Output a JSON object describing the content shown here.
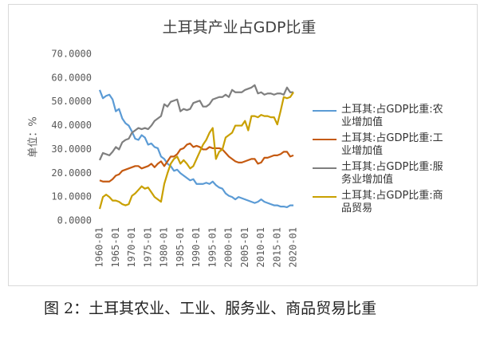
{
  "chart_data": {
    "type": "line",
    "title": "土耳其产业占GDP比重",
    "y_label": "单位：%",
    "categories": [
      "1960-01",
      null,
      null,
      null,
      null,
      "1965-01",
      null,
      null,
      null,
      null,
      "1970-01",
      null,
      null,
      null,
      null,
      "1975-01",
      null,
      null,
      null,
      null,
      "1980-01",
      null,
      null,
      null,
      null,
      "1985-01",
      null,
      null,
      null,
      null,
      "1990-01",
      null,
      null,
      null,
      null,
      "1995-01",
      null,
      null,
      null,
      null,
      "2000-01",
      null,
      null,
      null,
      null,
      "2005-01",
      null,
      null,
      null,
      null,
      "2010-01",
      null,
      null,
      null,
      null,
      "2015-01",
      null,
      null,
      null,
      null,
      "2020-01"
    ],
    "series": [
      {
        "name": "土耳其:占GDP比重:农业增加值",
        "color": "#5b9bd5",
        "values": [
          55,
          51.5,
          52.5,
          53,
          51,
          46,
          47,
          43,
          41,
          40,
          37.5,
          34.5,
          34,
          36,
          35,
          32,
          32.5,
          31,
          30.5,
          27,
          26,
          24,
          23,
          21,
          21.5,
          20,
          19,
          18,
          17,
          17.5,
          15.5,
          15.5,
          15.5,
          16,
          15.5,
          16.5,
          15,
          14,
          13.5,
          11.5,
          10.5,
          10,
          9,
          10,
          9.5,
          9,
          8.5,
          8,
          7.5,
          8,
          9,
          8,
          7.5,
          7,
          6.5,
          6.5,
          6,
          6,
          5.7,
          6.5,
          6.5
        ]
      },
      {
        "name": "土耳其:占GDP比重:工业增加值",
        "color": "#c55a11",
        "values": [
          17,
          16.5,
          16.5,
          16.5,
          17.5,
          19,
          19.5,
          21,
          21.5,
          22,
          22.5,
          23,
          23,
          22,
          22.5,
          23,
          24,
          22.5,
          24,
          25,
          23,
          25,
          27,
          27,
          28,
          30,
          30.5,
          32,
          32.5,
          31,
          31.5,
          31,
          30,
          30,
          31,
          30.5,
          30.5,
          30.5,
          30,
          28.5,
          27,
          26,
          25,
          24.5,
          24.5,
          25,
          25.5,
          26,
          26,
          24,
          24.5,
          26.5,
          26.5,
          27,
          27.5,
          27.5,
          28,
          29,
          29,
          27,
          27.5
        ]
      },
      {
        "name": "土耳其:占GDP比重:服务业增加值",
        "color": "#7f7f7f",
        "values": [
          25.5,
          28.5,
          28,
          27.5,
          29,
          31,
          30,
          33,
          34,
          34.5,
          37,
          38,
          39,
          38.5,
          39,
          38.5,
          40,
          42,
          43,
          44,
          49,
          48,
          50,
          50.5,
          51,
          46,
          47,
          46.5,
          47,
          49.5,
          50,
          50.5,
          48,
          48,
          49,
          51,
          51.5,
          52,
          52,
          53,
          52,
          55,
          54,
          54,
          54,
          55,
          55.5,
          56,
          57,
          53.5,
          54,
          53,
          53.5,
          53.5,
          53,
          53.5,
          53.5,
          53,
          56,
          54,
          54
        ]
      },
      {
        "name": "土耳其:占GDP比重:商品贸易",
        "color": "#c9a000",
        "values": [
          5,
          10,
          11,
          10,
          8.5,
          8.5,
          8,
          7,
          6.5,
          7,
          10.5,
          11.5,
          13,
          14.5,
          13.5,
          14,
          12,
          10,
          9,
          8,
          15.5,
          20,
          24,
          26,
          27,
          24,
          25.5,
          24,
          22,
          23,
          26,
          29,
          32,
          34,
          37,
          39,
          26,
          29,
          30,
          35,
          36,
          37,
          40,
          40,
          40,
          42,
          38,
          44,
          44,
          43.5,
          44.5,
          44,
          44,
          43.5,
          43.5,
          40.5,
          46,
          52,
          51.5,
          52,
          54
        ]
      }
    ],
    "ylim": [
      0,
      70
    ],
    "yticks": [
      {
        "value": 0,
        "label": "0.0000"
      },
      {
        "value": 10,
        "label": "10.0000"
      },
      {
        "value": 20,
        "label": "20.0000"
      },
      {
        "value": 30,
        "label": "30.0000"
      },
      {
        "value": 40,
        "label": "40.0000"
      },
      {
        "value": 50,
        "label": "50.0000"
      },
      {
        "value": 60,
        "label": "60.0000"
      },
      {
        "value": 70,
        "label": "70.0000"
      }
    ],
    "grid": false,
    "legend": "right"
  },
  "caption": "图 2：土耳其农业、工业、服务业、商品贸易比重"
}
